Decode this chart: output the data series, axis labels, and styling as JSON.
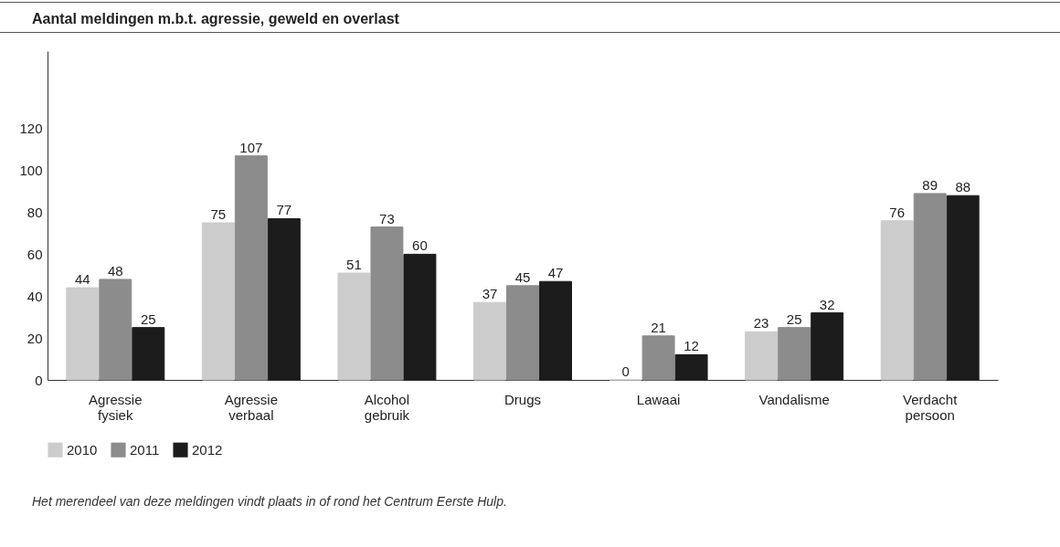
{
  "chart_data": {
    "type": "bar",
    "title": "Aantal meldingen m.b.t. agressie, geweld en overlast",
    "categories": [
      "Agressie fysiek",
      "Agressie verbaal",
      "Alcohol gebruik",
      "Drugs",
      "Lawaai",
      "Vandalisme",
      "Verdacht persoon"
    ],
    "series": [
      {
        "name": "2010",
        "color": "#cccccc",
        "values": [
          44,
          75,
          51,
          37,
          0,
          23,
          76
        ]
      },
      {
        "name": "2011",
        "color": "#8c8c8c",
        "values": [
          48,
          107,
          73,
          45,
          21,
          25,
          89
        ]
      },
      {
        "name": "2012",
        "color": "#1c1c1c",
        "values": [
          25,
          77,
          60,
          47,
          12,
          32,
          88
        ]
      }
    ],
    "ylim": [
      0,
      157
    ],
    "yticks": [
      0,
      20,
      40,
      60,
      80,
      100,
      120
    ],
    "grid": false,
    "data_labels": true,
    "legend": "bottom left",
    "annotations": [
      "Het merendeel van deze meldingen vindt plaats in of rond het Centrum Eerste Hulp."
    ]
  }
}
